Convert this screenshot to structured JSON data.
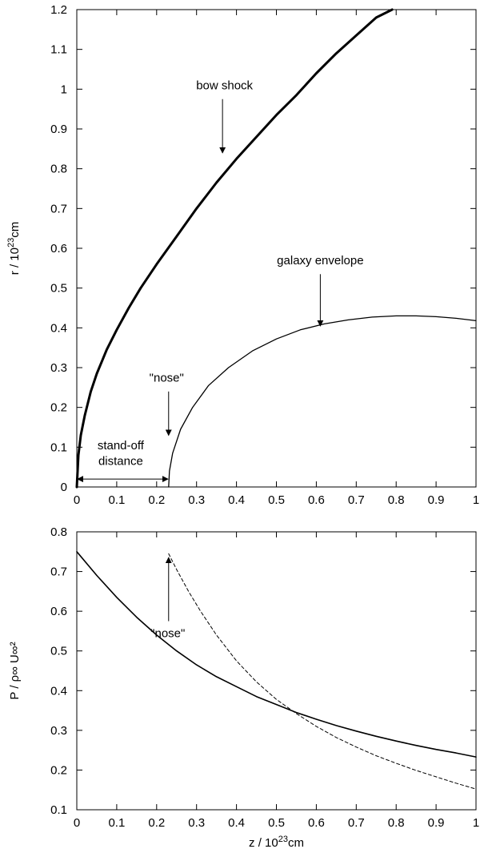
{
  "chart_data": [
    {
      "type": "line",
      "xlabel": "",
      "ylabel": "r / 10²³cm",
      "ylabel_main": "r / 10",
      "ylabel_sup": "23",
      "ylabel_tail": "cm",
      "xlim": [
        0,
        1
      ],
      "ylim": [
        0,
        1.2
      ],
      "x_ticks": [
        "0",
        "0.1",
        "0.2",
        "0.3",
        "0.4",
        "0.5",
        "0.6",
        "0.7",
        "0.8",
        "0.9",
        "1"
      ],
      "y_ticks": [
        "0",
        "0.1",
        "0.2",
        "0.3",
        "0.4",
        "0.5",
        "0.6",
        "0.7",
        "0.8",
        "0.9",
        "1",
        "1.1",
        "1.2"
      ],
      "series": [
        {
          "x": [
            0,
            0.004,
            0.01,
            0.02,
            0.035,
            0.05,
            0.075,
            0.1,
            0.13,
            0.16,
            0.2,
            0.25,
            0.3,
            0.35,
            0.4,
            0.45,
            0.5,
            0.55,
            0.6,
            0.65,
            0.7,
            0.75,
            0.79
          ],
          "y": [
            0,
            0.08,
            0.13,
            0.18,
            0.24,
            0.285,
            0.345,
            0.395,
            0.45,
            0.5,
            0.56,
            0.63,
            0.7,
            0.765,
            0.825,
            0.88,
            0.935,
            0.985,
            1.04,
            1.09,
            1.135,
            1.18,
            1.2
          ],
          "style": "thick"
        },
        {
          "x": [
            0.23,
            0.232,
            0.24,
            0.26,
            0.29,
            0.33,
            0.38,
            0.44,
            0.5,
            0.56,
            0.62,
            0.68,
            0.74,
            0.8,
            0.85,
            0.9,
            0.95,
            1.0
          ],
          "y": [
            0,
            0.04,
            0.085,
            0.145,
            0.2,
            0.255,
            0.3,
            0.342,
            0.372,
            0.395,
            0.41,
            0.42,
            0.427,
            0.43,
            0.43,
            0.428,
            0.424,
            0.418
          ],
          "style": "thin"
        }
      ],
      "annotations": [
        {
          "text": "bow shock",
          "tx": 0.37,
          "ty": 1.0,
          "ax": 0.365,
          "ay_from": 0.975,
          "ay_to": 0.84
        },
        {
          "text": "galaxy envelope",
          "tx": 0.61,
          "ty": 0.56,
          "ax": 0.61,
          "ay_from": 0.535,
          "ay_to": 0.405
        },
        {
          "text": "\"nose\"",
          "tx": 0.225,
          "ty": 0.265,
          "ax": 0.23,
          "ay_from": 0.24,
          "ay_to": 0.13
        }
      ],
      "standoff": {
        "line1": "stand-off",
        "line2": "distance",
        "x_from": 0,
        "x_to": 0.23,
        "y": 0.02,
        "label_x": 0.11,
        "label_y1": 0.095,
        "label_y2": 0.055
      }
    },
    {
      "type": "line",
      "xlabel": "z / 10²³cm",
      "xlabel_main": "z / 10",
      "xlabel_sup": "23",
      "xlabel_tail": "cm",
      "ylabel": "P / ρ∞ U∞²",
      "xlim": [
        0,
        1
      ],
      "ylim": [
        0.1,
        0.8
      ],
      "x_ticks": [
        "0",
        "0.1",
        "0.2",
        "0.3",
        "0.4",
        "0.5",
        "0.6",
        "0.7",
        "0.8",
        "0.9",
        "1"
      ],
      "y_ticks": [
        "0.1",
        "0.2",
        "0.3",
        "0.4",
        "0.5",
        "0.6",
        "0.7",
        "0.8"
      ],
      "series": [
        {
          "x": [
            0,
            0.05,
            0.1,
            0.15,
            0.2,
            0.25,
            0.3,
            0.35,
            0.4,
            0.45,
            0.5,
            0.55,
            0.6,
            0.65,
            0.7,
            0.75,
            0.8,
            0.85,
            0.9,
            0.95,
            1.0
          ],
          "y": [
            0.75,
            0.69,
            0.635,
            0.585,
            0.54,
            0.5,
            0.465,
            0.435,
            0.41,
            0.385,
            0.365,
            0.345,
            0.328,
            0.312,
            0.298,
            0.285,
            0.273,
            0.262,
            0.252,
            0.243,
            0.233
          ],
          "style": "solid"
        },
        {
          "x": [
            0.23,
            0.25,
            0.28,
            0.31,
            0.35,
            0.4,
            0.45,
            0.5,
            0.55,
            0.6,
            0.65,
            0.7,
            0.75,
            0.8,
            0.85,
            0.9,
            0.95,
            1.0
          ],
          "y": [
            0.745,
            0.705,
            0.65,
            0.6,
            0.54,
            0.475,
            0.422,
            0.378,
            0.342,
            0.31,
            0.282,
            0.258,
            0.236,
            0.217,
            0.199,
            0.183,
            0.167,
            0.152
          ],
          "style": "dashed"
        }
      ],
      "annotations": [
        {
          "text": "\"nose\"",
          "tx": 0.228,
          "ty": 0.535,
          "ax": 0.23,
          "ay_from": 0.575,
          "ay_to": 0.735
        }
      ]
    }
  ]
}
